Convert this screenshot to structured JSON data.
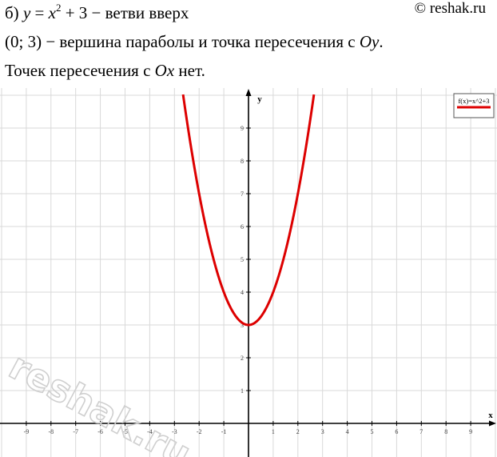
{
  "text": {
    "l1_prefix": "б) ",
    "l1_y": "y",
    "l1_eq": " = ",
    "l1_x": "x",
    "l1_exp": "2",
    "l1_rest": " + 3 − ветви вверх",
    "l2_point": "(0; 3)",
    "l2_mid": " − вершина параболы и точка пересечения с ",
    "l2_axis": "Oy",
    "l2_end": ".",
    "l3_pre": "Точек пересечения с ",
    "l3_axis": "Ox",
    "l3_end": " нет."
  },
  "copyright": "© reshak.ru",
  "watermark": "reshak.ru",
  "chart_data": {
    "type": "line",
    "xlabel": "x",
    "ylabel": "y",
    "xlim": [
      -10,
      10
    ],
    "ylim": [
      -0.4,
      10.2
    ],
    "x_ticks": [
      -9,
      -8,
      -7,
      -6,
      -5,
      -4,
      -3,
      -2,
      -1,
      1,
      2,
      3,
      4,
      5,
      6,
      7,
      8,
      9
    ],
    "y_ticks": [
      1,
      2,
      3,
      4,
      5,
      6,
      7,
      8,
      9
    ],
    "grid": true,
    "legend_position": "top-right",
    "series": [
      {
        "name": "f(x)=x^2+3",
        "color": "#dd0000",
        "function": "x^2+3",
        "x_range": [
          -2.65,
          2.65
        ],
        "vertex": [
          0,
          3
        ]
      }
    ]
  },
  "colors": {
    "curve": "#dd0000",
    "grid": "#d9d9d9",
    "axis": "#000000"
  }
}
